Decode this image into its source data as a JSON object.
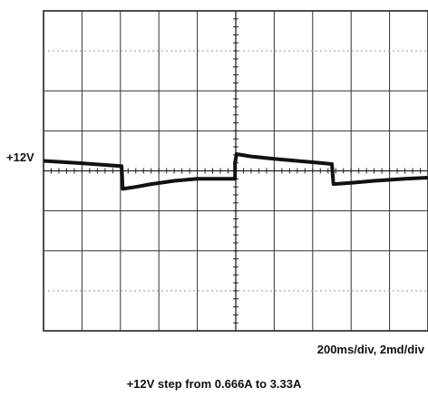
{
  "chart_data": {
    "type": "line",
    "divisions": {
      "x": 10,
      "y": 8
    },
    "y_marker_label": "+12V",
    "scale_label": "200ms/div, 2md/div",
    "caption": "+12V step from 0.666A to 3.33A",
    "x": [
      0.0,
      1.0,
      2.0,
      2.03,
      2.06,
      2.4,
      2.8,
      3.4,
      4.0,
      4.98,
      4.98,
      5.02,
      5.4,
      6.0,
      6.6,
      7.2,
      7.5,
      7.5,
      7.54,
      8.0,
      8.6,
      9.4,
      10.0
    ],
    "y": [
      0.25,
      0.19,
      0.12,
      0.12,
      -0.45,
      -0.4,
      -0.33,
      -0.25,
      -0.2,
      -0.2,
      0.2,
      0.42,
      0.36,
      0.3,
      0.25,
      0.2,
      0.17,
      0.17,
      -0.33,
      -0.3,
      -0.25,
      -0.2,
      -0.17
    ],
    "grid": true,
    "trace_color": "#111111"
  }
}
